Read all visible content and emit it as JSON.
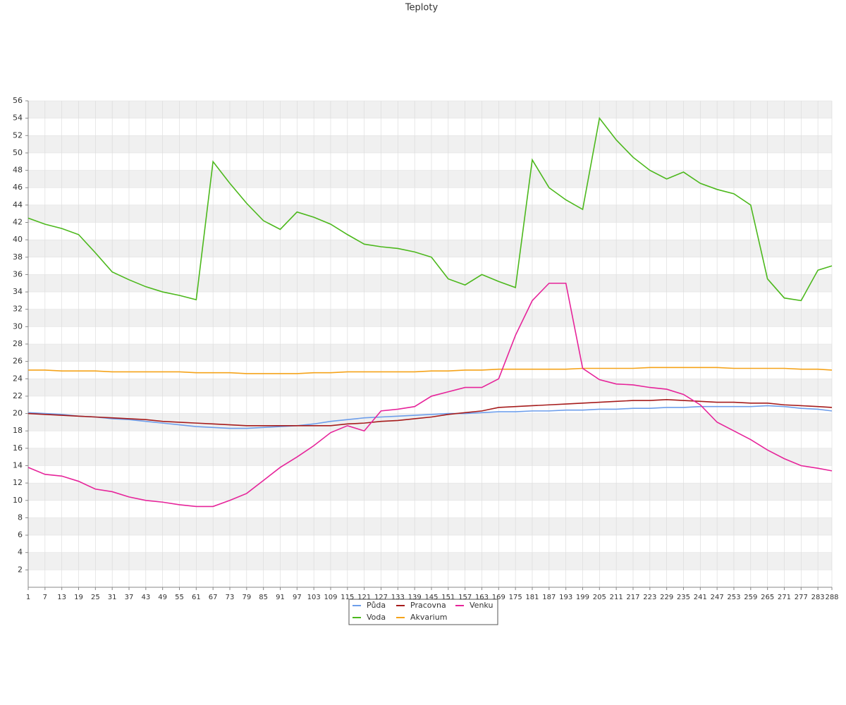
{
  "chart_data": {
    "type": "line",
    "title": "Teploty",
    "x": [
      1,
      7,
      13,
      19,
      25,
      31,
      37,
      43,
      49,
      55,
      61,
      67,
      73,
      79,
      85,
      91,
      97,
      103,
      109,
      115,
      121,
      127,
      133,
      139,
      145,
      151,
      157,
      163,
      169,
      175,
      181,
      187,
      193,
      199,
      205,
      211,
      217,
      223,
      229,
      235,
      241,
      247,
      253,
      259,
      265,
      271,
      277,
      283,
      288
    ],
    "xlim": [
      1,
      288
    ],
    "ylim": [
      0,
      56
    ],
    "yticks": [
      2,
      4,
      6,
      8,
      10,
      12,
      14,
      16,
      18,
      20,
      22,
      24,
      26,
      28,
      30,
      32,
      34,
      36,
      38,
      40,
      42,
      44,
      46,
      48,
      50,
      52,
      54,
      56
    ],
    "grid": true,
    "legend": "bottom",
    "series": [
      {
        "name": "Půda",
        "color": "#6d9eeb",
        "values": [
          20.1,
          20.0,
          19.9,
          19.7,
          19.6,
          19.4,
          19.3,
          19.1,
          18.9,
          18.7,
          18.5,
          18.4,
          18.3,
          18.3,
          18.4,
          18.5,
          18.6,
          18.8,
          19.1,
          19.3,
          19.5,
          19.6,
          19.7,
          19.8,
          19.9,
          20.0,
          20.0,
          20.1,
          20.2,
          20.2,
          20.3,
          20.3,
          20.4,
          20.4,
          20.5,
          20.5,
          20.6,
          20.6,
          20.7,
          20.7,
          20.8,
          20.8,
          20.8,
          20.8,
          20.9,
          20.8,
          20.6,
          20.5,
          20.3
        ]
      },
      {
        "name": "Voda",
        "color": "#4cb81c",
        "values": [
          42.5,
          41.8,
          41.3,
          40.6,
          38.5,
          36.3,
          35.4,
          34.6,
          34.0,
          33.6,
          33.1,
          49.0,
          46.5,
          44.2,
          42.2,
          41.2,
          43.2,
          42.6,
          41.8,
          40.6,
          39.5,
          39.2,
          39.0,
          38.6,
          38.0,
          35.5,
          34.8,
          36.0,
          35.2,
          34.5,
          49.2,
          46.0,
          44.6,
          43.5,
          54.0,
          51.5,
          49.5,
          48.0,
          47.0,
          47.8,
          46.5,
          45.8,
          45.3,
          44.0,
          35.5,
          33.3,
          33.0,
          36.5,
          37.0
        ]
      },
      {
        "name": "Pracovna",
        "color": "#a61c1c",
        "values": [
          20.0,
          19.9,
          19.8,
          19.7,
          19.6,
          19.5,
          19.4,
          19.3,
          19.1,
          19.0,
          18.9,
          18.8,
          18.7,
          18.6,
          18.6,
          18.6,
          18.6,
          18.6,
          18.6,
          18.8,
          18.9,
          19.1,
          19.2,
          19.4,
          19.6,
          19.9,
          20.1,
          20.3,
          20.7,
          20.8,
          20.9,
          21.0,
          21.1,
          21.2,
          21.3,
          21.4,
          21.5,
          21.5,
          21.6,
          21.5,
          21.4,
          21.3,
          21.3,
          21.2,
          21.2,
          21.0,
          20.9,
          20.8,
          20.7
        ]
      },
      {
        "name": "Akvarium",
        "color": "#f5a31a",
        "values": [
          25.0,
          25.0,
          24.9,
          24.9,
          24.9,
          24.8,
          24.8,
          24.8,
          24.8,
          24.8,
          24.7,
          24.7,
          24.7,
          24.6,
          24.6,
          24.6,
          24.6,
          24.7,
          24.7,
          24.8,
          24.8,
          24.8,
          24.8,
          24.8,
          24.9,
          24.9,
          25.0,
          25.0,
          25.1,
          25.1,
          25.1,
          25.1,
          25.1,
          25.2,
          25.2,
          25.2,
          25.2,
          25.3,
          25.3,
          25.3,
          25.3,
          25.3,
          25.2,
          25.2,
          25.2,
          25.2,
          25.1,
          25.1,
          25.0
        ]
      },
      {
        "name": "Venku",
        "color": "#e6249a",
        "values": [
          13.8,
          13.0,
          12.8,
          12.2,
          11.3,
          11.0,
          10.4,
          10.0,
          9.8,
          9.5,
          9.3,
          9.3,
          10.0,
          10.8,
          12.3,
          13.8,
          15.0,
          16.3,
          17.8,
          18.6,
          18.0,
          20.3,
          20.5,
          20.8,
          22.0,
          22.5,
          23.0,
          23.0,
          24.0,
          29.0,
          33.0,
          35.0,
          35.0,
          25.2,
          23.9,
          23.4,
          23.3,
          23.0,
          22.8,
          22.2,
          21.0,
          19.0,
          18.0,
          17.0,
          15.8,
          14.8,
          14.0,
          13.7,
          13.4
        ]
      }
    ]
  }
}
